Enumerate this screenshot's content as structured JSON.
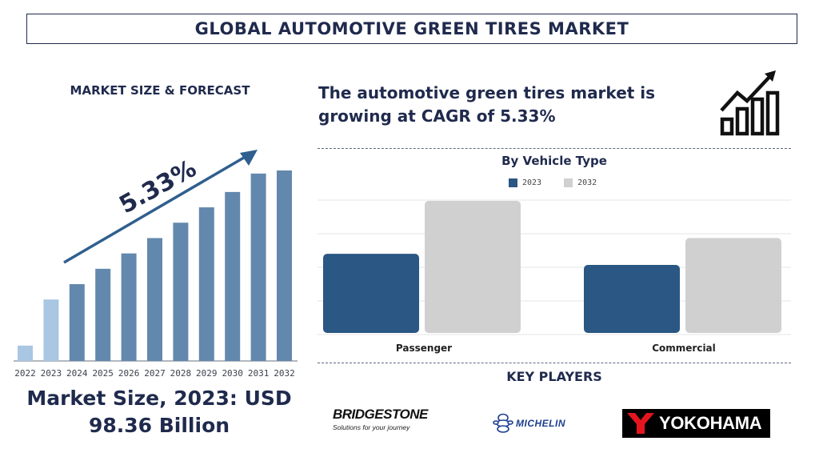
{
  "header": {
    "title": "GLOBAL AUTOMOTIVE GREEN TIRES MARKET"
  },
  "left_panel": {
    "heading": "MARKET SIZE & FORECAST",
    "market_size_line1": "Market Size, 2023: USD",
    "market_size_line2": "98.36 Billion"
  },
  "right_panel": {
    "headline_line1": "The automotive green tires market is",
    "headline_line2": "growing at CAGR of 5.33%",
    "key_players_heading": "KEY PLAYERS",
    "icon": "growth-chart-icon"
  },
  "key_players": {
    "bridgestone_name": "BRIDGESTONE",
    "bridgestone_tagline": "Solutions for your journey",
    "michelin_name": "MICHELIN",
    "yokohama_name": "YOKOHAMA"
  },
  "chart_data": [
    {
      "type": "bar",
      "title": "",
      "categories": [
        "2022",
        "2023",
        "2024",
        "2025",
        "2026",
        "2027",
        "2028",
        "2029",
        "2030",
        "2031",
        "2032"
      ],
      "values": [
        1,
        4,
        5,
        6,
        7,
        8,
        9,
        10,
        11,
        12.2,
        12.4
      ],
      "colors": [
        "#a9c6e2",
        "#a9c6e2",
        "#6388ad",
        "#6388ad",
        "#6388ad",
        "#6388ad",
        "#6388ad",
        "#6388ad",
        "#6388ad",
        "#6388ad",
        "#6388ad"
      ],
      "annotation": "5.33%",
      "xlabel": "",
      "ylabel": "",
      "grid": false,
      "axis_color": "#9aa0a8",
      "arrow_color": "#2f5f8e"
    },
    {
      "type": "bar",
      "title": "By Vehicle Type",
      "categories": [
        "Passenger",
        "Commercial"
      ],
      "series": [
        {
          "name": "2023",
          "values": [
            100,
            86
          ],
          "color": "#2a5783"
        },
        {
          "name": "2032",
          "values": [
            167,
            120
          ],
          "color": "#d0d0d0"
        }
      ],
      "ylim": [
        0,
        170
      ],
      "grid": true,
      "legend": "top-center"
    }
  ]
}
